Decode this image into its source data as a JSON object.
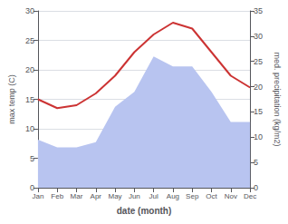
{
  "chart_data": {
    "type": "line",
    "categories": [
      "Jan",
      "Feb",
      "Mar",
      "Apr",
      "May",
      "Jun",
      "Jul",
      "Aug",
      "Sep",
      "Oct",
      "Nov",
      "Dec"
    ],
    "series": [
      {
        "type": "area",
        "axis": "y2",
        "color": "#b8c4f0",
        "values": [
          9.5,
          8,
          8,
          9,
          16,
          19,
          26,
          24,
          24,
          19,
          13,
          13
        ]
      },
      {
        "type": "line",
        "color": "#cc3333",
        "values": [
          15,
          13.5,
          14,
          16,
          19,
          23,
          26,
          28,
          27,
          23,
          19,
          17
        ]
      }
    ],
    "xlabel": "date (month)",
    "ylabel": "max temp (C)",
    "y2label": "med. precipitation (kg/m2)",
    "ylim": [
      0,
      30
    ],
    "yticks": [
      0,
      5,
      10,
      15,
      20,
      25,
      30
    ],
    "y2lim": [
      0,
      35
    ],
    "y2ticks": [
      0,
      5,
      10,
      15,
      20,
      25,
      30,
      35
    ],
    "grid": true
  }
}
